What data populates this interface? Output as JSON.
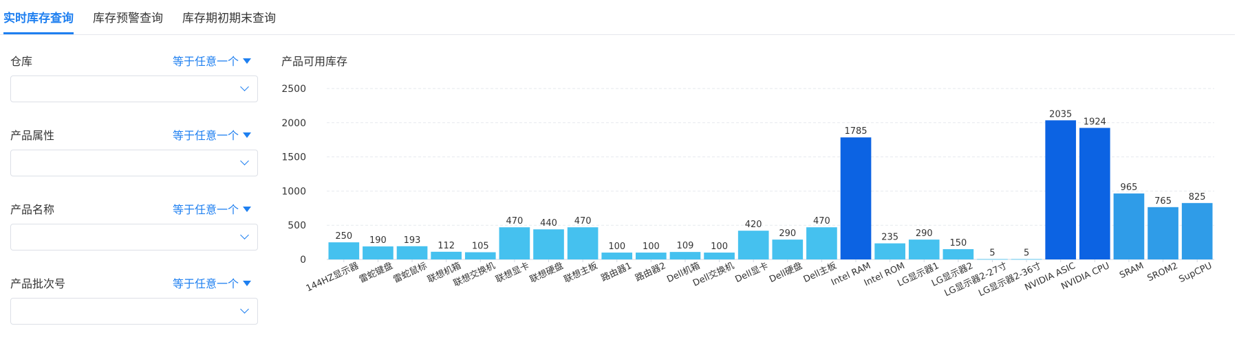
{
  "tabs": [
    {
      "label": "实时库存查询",
      "active": true
    },
    {
      "label": "库存预警查询",
      "active": false
    },
    {
      "label": "库存期初期末查询",
      "active": false
    }
  ],
  "filters": [
    {
      "label": "仓库",
      "operator": "等于任意一个",
      "value": ""
    },
    {
      "label": "产品属性",
      "operator": "等于任意一个",
      "value": ""
    },
    {
      "label": "产品名称",
      "operator": "等于任意一个",
      "value": ""
    },
    {
      "label": "产品批次号",
      "operator": "等于任意一个",
      "value": ""
    }
  ],
  "colors": {
    "accent": "#1e7ff0",
    "bar_light": "#45c1ef",
    "bar_mid": "#2f9ce8",
    "bar_dark": "#0c63e3"
  },
  "chart_data": {
    "type": "bar",
    "title": "产品可用库存",
    "xlabel": "",
    "ylabel": "",
    "ylim": [
      0,
      2500
    ],
    "yticks": [
      0,
      500,
      1000,
      1500,
      2000,
      2500
    ],
    "grid": true,
    "categories": [
      "144HZ显示器",
      "雷蛇键盘",
      "雷蛇鼠标",
      "联想机箱",
      "联想交换机",
      "联想显卡",
      "联想硬盘",
      "联想主板",
      "路由器1",
      "路由器2",
      "Dell机箱",
      "Dell交换机",
      "Dell显卡",
      "Dell硬盘",
      "Dell主板",
      "Intel RAM",
      "Intel ROM",
      "LG显示器1",
      "LG显示器2",
      "LG显示器2-27寸",
      "LG显示器2-36寸",
      "NVIDIA ASIC",
      "NVIDIA CPU",
      "SRAM",
      "SROM2",
      "SupCPU"
    ],
    "values": [
      250,
      190,
      193,
      112,
      105,
      470,
      440,
      470,
      100,
      100,
      109,
      100,
      420,
      290,
      470,
      1785,
      235,
      290,
      150,
      5,
      5,
      2035,
      1924,
      965,
      765,
      825
    ]
  }
}
